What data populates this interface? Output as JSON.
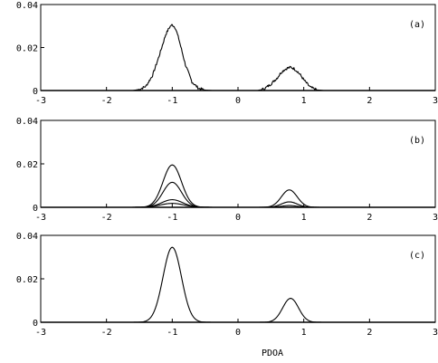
{
  "chart_data": [
    {
      "type": "line",
      "panel_label": "(a)",
      "xlabel": "",
      "xlim": [
        -3,
        3
      ],
      "ylim": [
        0,
        0.04
      ],
      "xticks": [
        "-3",
        "-2",
        "-1",
        "0",
        "1",
        "2",
        "3"
      ],
      "yticks": [
        "0",
        "0.02",
        "0.04"
      ],
      "series": [
        {
          "x": [
            -1.6,
            -1.5,
            -1.4,
            -1.3,
            -1.2,
            -1.15,
            -1.1,
            -1.05,
            -1.02,
            -1.0,
            -0.98,
            -0.95,
            -0.9,
            -0.85,
            -0.8,
            -0.7,
            -0.6,
            -0.5,
            -0.4,
            0.3,
            0.4,
            0.5,
            0.6,
            0.65,
            0.7,
            0.75,
            0.8,
            0.85,
            0.9,
            0.95,
            1.0,
            1.05,
            1.1,
            1.2,
            1.3
          ],
          "y": [
            0.0,
            0.0005,
            0.002,
            0.007,
            0.016,
            0.021,
            0.026,
            0.029,
            0.0302,
            0.0305,
            0.0301,
            0.029,
            0.024,
            0.018,
            0.012,
            0.004,
            0.001,
            0.0002,
            0.0,
            0.0,
            0.0008,
            0.003,
            0.006,
            0.0082,
            0.0096,
            0.0104,
            0.0108,
            0.0102,
            0.009,
            0.0072,
            0.005,
            0.0032,
            0.0015,
            0.0003,
            0.0
          ]
        }
      ],
      "noisy": true
    },
    {
      "type": "line",
      "panel_label": "(b)",
      "xlabel": "",
      "xlim": [
        -3,
        3
      ],
      "ylim": [
        0,
        0.04
      ],
      "xticks": [
        "-3",
        "-2",
        "-1",
        "0",
        "1",
        "2",
        "3"
      ],
      "yticks": [
        "0",
        "0.02",
        "0.04"
      ],
      "series": [
        {
          "gaussians": [
            {
              "mu": -1.0,
              "sigma": 0.14,
              "amp": 0.0195
            },
            {
              "mu": 0.78,
              "sigma": 0.12,
              "amp": 0.008
            }
          ]
        },
        {
          "gaussians": [
            {
              "mu": -1.0,
              "sigma": 0.14,
              "amp": 0.0115
            },
            {
              "mu": 0.78,
              "sigma": 0.12,
              "amp": 0.0025
            }
          ]
        },
        {
          "gaussians": [
            {
              "mu": -1.0,
              "sigma": 0.16,
              "amp": 0.0035
            },
            {
              "mu": 0.78,
              "sigma": 0.12,
              "amp": 0.0008
            }
          ]
        },
        {
          "gaussians": [
            {
              "mu": -1.0,
              "sigma": 0.18,
              "amp": 0.0018
            }
          ]
        }
      ]
    },
    {
      "type": "line",
      "panel_label": "(c)",
      "xlabel": "PDOA",
      "xlim": [
        -3,
        3
      ],
      "ylim": [
        0,
        0.04
      ],
      "xticks": [
        "-3",
        "-2",
        "-1",
        "0",
        "1",
        "2",
        "3"
      ],
      "yticks": [
        "0",
        "0.02",
        "0.04"
      ],
      "series": [
        {
          "gaussians": [
            {
              "mu": -1.0,
              "sigma": 0.14,
              "amp": 0.0345
            },
            {
              "mu": 0.8,
              "sigma": 0.12,
              "amp": 0.011
            }
          ]
        }
      ]
    }
  ]
}
